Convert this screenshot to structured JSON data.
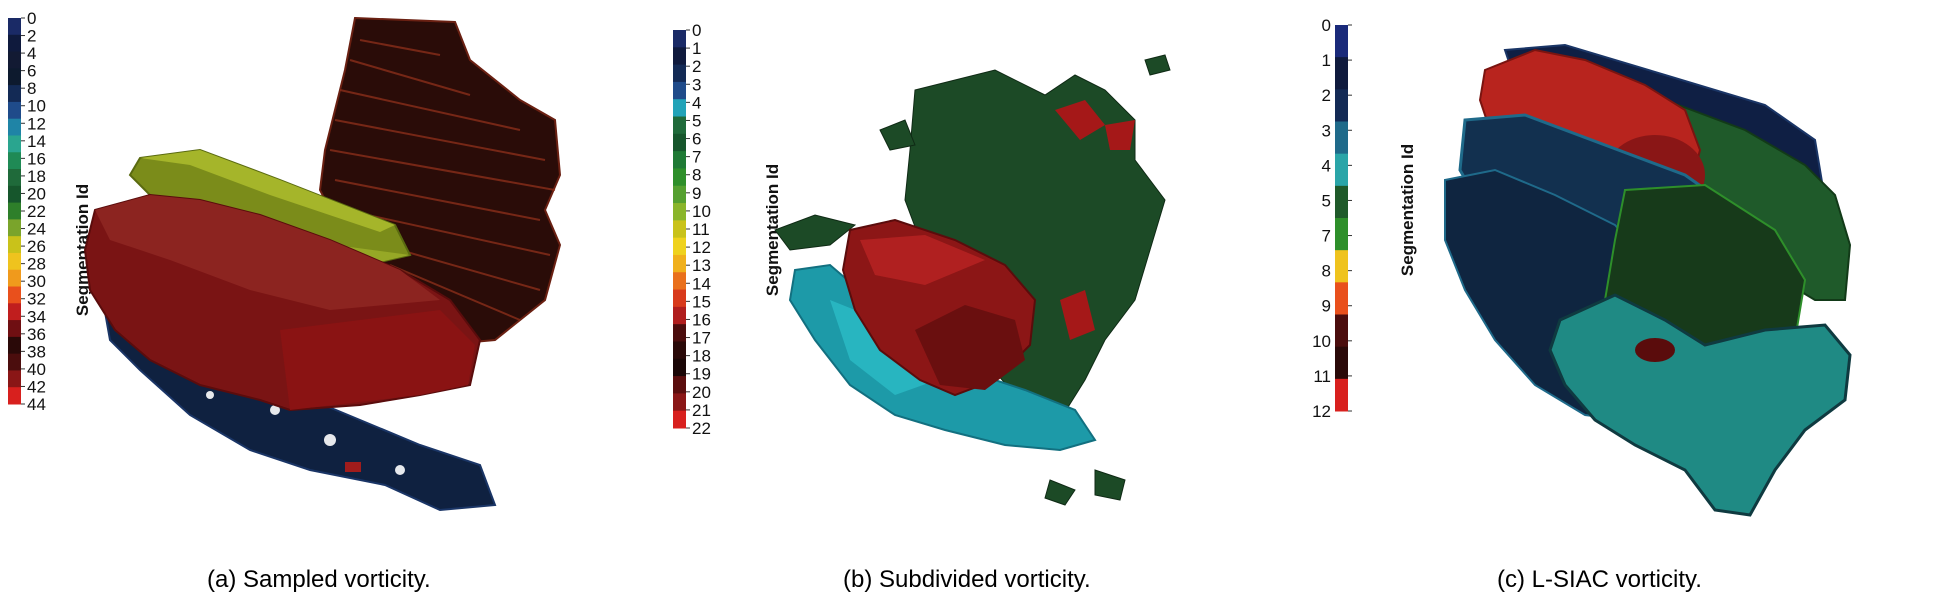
{
  "panels": [
    {
      "id": "a",
      "caption": "(a) Sampled vorticity.",
      "colorbar": {
        "title": "Segmentation Id",
        "ticks": [
          "0",
          "2",
          "4",
          "6",
          "8",
          "10",
          "12",
          "14",
          "16",
          "18",
          "20",
          "22",
          "24",
          "26",
          "28",
          "30",
          "32",
          "34",
          "36",
          "38",
          "40",
          "42",
          "44"
        ],
        "colors": [
          "#1a2a66",
          "#0f1a3d",
          "#121a33",
          "#0d1a2e",
          "#132a55",
          "#1f4b8a",
          "#1f84a6",
          "#2aa58f",
          "#1f8a55",
          "#1f6a3a",
          "#16562c",
          "#2e7f2a",
          "#7aa42b",
          "#c9c21a",
          "#efc31e",
          "#f09a1c",
          "#e9501c",
          "#c01e1e",
          "#6f0f12",
          "#2a0908",
          "#4b0d0d",
          "#8a1616",
          "#d8201e"
        ]
      },
      "objects": [
        "yellow-green-slab",
        "red-cylinder-blob",
        "blue-sheet",
        "dark-brown-mass"
      ]
    },
    {
      "id": "b",
      "caption": "(b) Subdivided vorticity.",
      "colorbar": {
        "title": "Segmentation Id",
        "ticks": [
          "0",
          "1",
          "2",
          "3",
          "4",
          "5",
          "6",
          "7",
          "8",
          "9",
          "10",
          "11",
          "12",
          "13",
          "14",
          "15",
          "16",
          "17",
          "18",
          "19",
          "20",
          "21",
          "22"
        ],
        "colors": [
          "#1a2a66",
          "#0f1a3d",
          "#132a55",
          "#1f4b8a",
          "#22a3b8",
          "#1f6a3a",
          "#16562c",
          "#1f7a35",
          "#2e8f2a",
          "#55a030",
          "#8ab52b",
          "#c9c21a",
          "#efd21e",
          "#f0b01c",
          "#e9701c",
          "#d83a1c",
          "#b01e1e",
          "#4b0d0d",
          "#2a0908",
          "#1a0606",
          "#5a0d0d",
          "#8a1616",
          "#d8201e"
        ]
      },
      "objects": [
        "cyan-sheet",
        "red-cylinder",
        "green-fragments",
        "red-core"
      ]
    },
    {
      "id": "c",
      "caption": "(c) L-SIAC vorticity.",
      "colorbar": {
        "title": "Segmentation Id",
        "ticks": [
          "0",
          "1",
          "2",
          "3",
          "4",
          "5",
          "7",
          "8",
          "9",
          "10",
          "11",
          "12"
        ],
        "colors": [
          "#1a2a7a",
          "#0f1a3d",
          "#132a55",
          "#1f6a8a",
          "#2aa5a8",
          "#1f5a2a",
          "#2e8f2a",
          "#efc31e",
          "#e9501c",
          "#4b0d0d",
          "#2a0908",
          "#d8201e"
        ]
      },
      "objects": [
        "navy-bar",
        "red-cylinder",
        "green-bar",
        "blue-cylinder",
        "green-core",
        "teal-sheet"
      ]
    }
  ]
}
